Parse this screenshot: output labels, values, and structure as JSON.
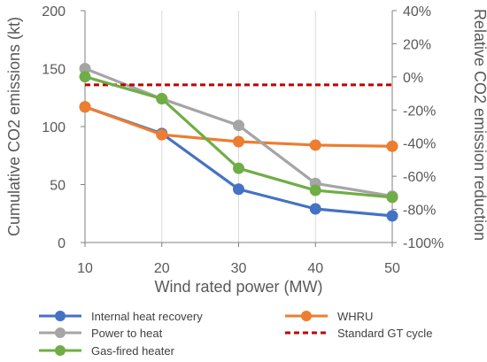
{
  "chart_data": {
    "type": "line",
    "title": "",
    "xlabel": "Wind rated power (MW)",
    "ylabel": "Cumulative CO2  emissions (kt)",
    "y2label": "Relative CO2 emission reduction",
    "x": [
      10,
      20,
      30,
      40,
      50
    ],
    "xlim": [
      10,
      50
    ],
    "ylim": [
      0,
      200
    ],
    "y2lim": [
      -100,
      40
    ],
    "x_ticks": [
      "10",
      "20",
      "30",
      "40",
      "50"
    ],
    "y_ticks": [
      "0",
      "50",
      "100",
      "150",
      "200"
    ],
    "y2_ticks": [
      "-100%",
      "-80%",
      "-60%",
      "-40%",
      "-20%",
      "0%",
      "20%",
      "40%"
    ],
    "grid": "vertical",
    "legend_position": "bottom",
    "series": [
      {
        "name": "Internal heat recovery",
        "color": "#4472C4",
        "dashed": false,
        "markers": true,
        "values": [
          117,
          94,
          46,
          29,
          23
        ]
      },
      {
        "name": "WHRU",
        "color": "#ED7D31",
        "dashed": false,
        "markers": true,
        "values": [
          117,
          93,
          87,
          84,
          83
        ]
      },
      {
        "name": "Power to heat",
        "color": "#A5A5A5",
        "dashed": false,
        "markers": true,
        "values": [
          150,
          124,
          101,
          51,
          40
        ]
      },
      {
        "name": "Standard GT cycle",
        "color": "#C00000",
        "dashed": true,
        "markers": false,
        "values": [
          136,
          136,
          136,
          136,
          136
        ]
      },
      {
        "name": "Gas-fired heater",
        "color": "#70AD47",
        "dashed": false,
        "markers": true,
        "values": [
          143,
          124,
          64,
          45,
          39
        ]
      }
    ]
  }
}
